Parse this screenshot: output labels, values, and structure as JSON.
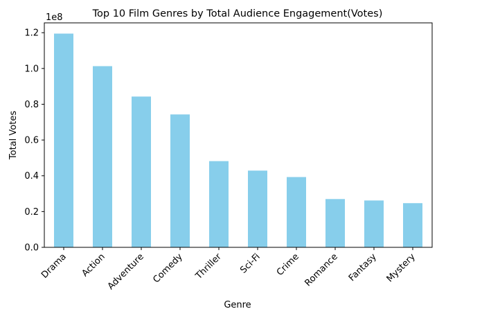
{
  "chart_data": {
    "type": "bar",
    "title": "Top 10 Film Genres by Total Audience Engagement(Votes)",
    "xlabel": "Genre",
    "ylabel": "Total Votes",
    "offset_label": "1e8",
    "categories": [
      "Drama",
      "Action",
      "Adventure",
      "Comedy",
      "Thriller",
      "Sci-Fi",
      "Crime",
      "Romance",
      "Fantasy",
      "Mystery"
    ],
    "values": [
      119500000,
      101300000,
      84300000,
      74300000,
      48200000,
      42900000,
      39300000,
      27000000,
      26200000,
      24700000
    ],
    "ylim": [
      0,
      125500000
    ],
    "yticks": [
      0,
      20000000,
      40000000,
      60000000,
      80000000,
      100000000,
      120000000
    ],
    "ytick_labels": [
      "0.0",
      "0.2",
      "0.4",
      "0.6",
      "0.8",
      "1.0",
      "1.2"
    ],
    "bar_color": "#87ceeb",
    "grid": false,
    "legend": "none"
  }
}
